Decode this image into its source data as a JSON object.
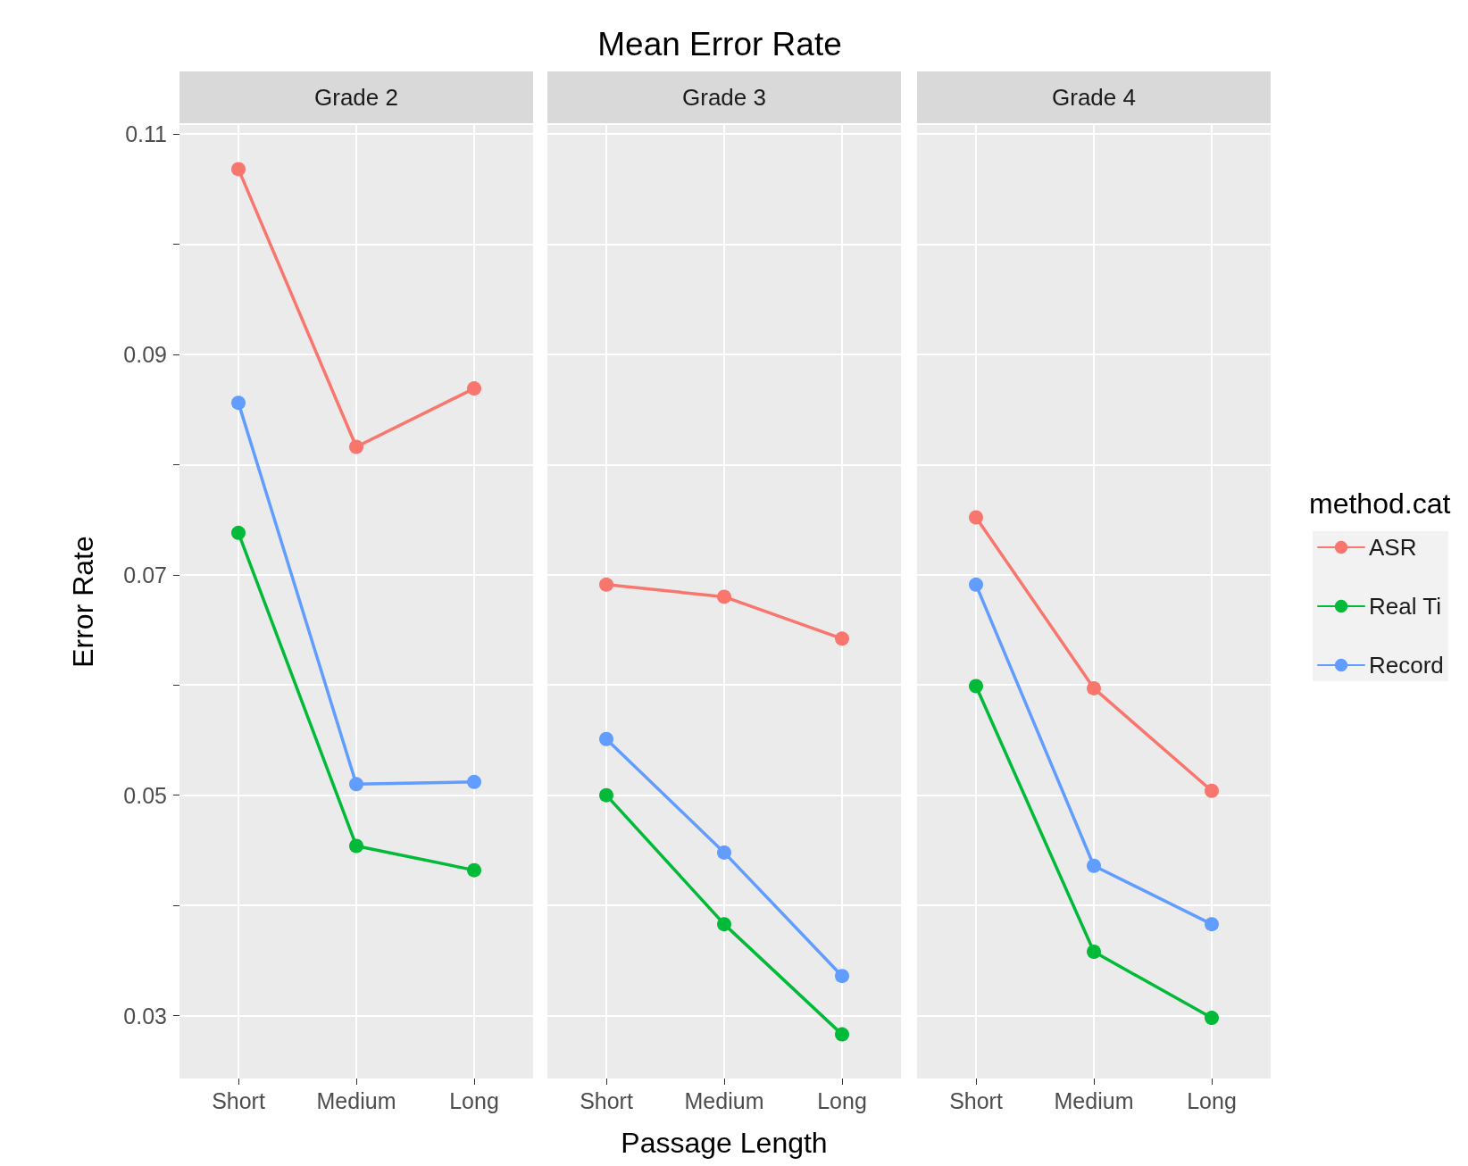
{
  "chart_data": [
    {
      "type": "line",
      "subtitle": "Grade 2",
      "ylabel": "Error Rate",
      "categories": [
        "Short",
        "Medium",
        "Long"
      ],
      "ylim": [
        0.0243,
        0.1108
      ],
      "yticks": [
        {
          "value": 0.03,
          "label": "0.03"
        },
        {
          "value": 0.04,
          "label": null
        },
        {
          "value": 0.05,
          "label": "0.05"
        },
        {
          "value": 0.06,
          "label": null
        },
        {
          "value": 0.07,
          "label": "0.07"
        },
        {
          "value": 0.08,
          "label": null
        },
        {
          "value": 0.09,
          "label": "0.09"
        },
        {
          "value": 0.1,
          "label": null
        },
        {
          "value": 0.11,
          "label": "0.11"
        }
      ],
      "grid": true,
      "marker": "circle",
      "legend": false,
      "series": [
        {
          "color": "#f8766d",
          "values": [
            0.1068,
            0.0816,
            0.0869
          ]
        },
        {
          "color": "#00ba38",
          "values": [
            0.0738,
            0.0454,
            0.0432
          ]
        },
        {
          "color": "#619cff",
          "values": [
            0.0856,
            0.051,
            0.0512
          ]
        }
      ]
    },
    {
      "type": "line",
      "title": "Mean Error Rate",
      "subtitle": "Grade 3",
      "xlabel": "Passage Length",
      "categories": [
        "Short",
        "Medium",
        "Long"
      ],
      "ylim": [
        0.0243,
        0.1108
      ],
      "yticks": [
        {
          "value": 0.03,
          "label": null
        },
        {
          "value": 0.04,
          "label": null
        },
        {
          "value": 0.05,
          "label": null
        },
        {
          "value": 0.06,
          "label": null
        },
        {
          "value": 0.07,
          "label": null
        },
        {
          "value": 0.08,
          "label": null
        },
        {
          "value": 0.09,
          "label": null
        },
        {
          "value": 0.1,
          "label": null
        },
        {
          "value": 0.11,
          "label": null
        }
      ],
      "tick_labels": "x",
      "grid": true,
      "marker": "circle",
      "legend": false,
      "series": [
        {
          "color": "#f8766d",
          "values": [
            0.0691,
            0.068,
            0.0642
          ]
        },
        {
          "color": "#00ba38",
          "values": [
            0.05,
            0.0383,
            0.0283
          ]
        },
        {
          "color": "#619cff",
          "values": [
            0.0551,
            0.0448,
            0.0336
          ]
        }
      ]
    },
    {
      "type": "line",
      "subtitle": "Grade 4",
      "legend_title": "method.cat",
      "categories": [
        "Short",
        "Medium",
        "Long"
      ],
      "ylim": [
        0.0243,
        0.1108
      ],
      "yticks": [
        {
          "value": 0.03,
          "label": null
        },
        {
          "value": 0.04,
          "label": null
        },
        {
          "value": 0.05,
          "label": null
        },
        {
          "value": 0.06,
          "label": null
        },
        {
          "value": 0.07,
          "label": null
        },
        {
          "value": 0.08,
          "label": null
        },
        {
          "value": 0.09,
          "label": null
        },
        {
          "value": 0.1,
          "label": null
        },
        {
          "value": 0.11,
          "label": null
        }
      ],
      "tick_labels": "x",
      "grid": true,
      "marker": "circle",
      "legend": "right",
      "series": [
        {
          "name": "ASR",
          "color": "#f8766d",
          "values": [
            0.0752,
            0.0597,
            0.0504
          ]
        },
        {
          "name": "Real Ti",
          "color": "#00ba38",
          "values": [
            0.0599,
            0.0358,
            0.0298
          ]
        },
        {
          "name": "Record",
          "color": "#619cff",
          "values": [
            0.0691,
            0.0436,
            0.0383
          ]
        }
      ]
    }
  ]
}
